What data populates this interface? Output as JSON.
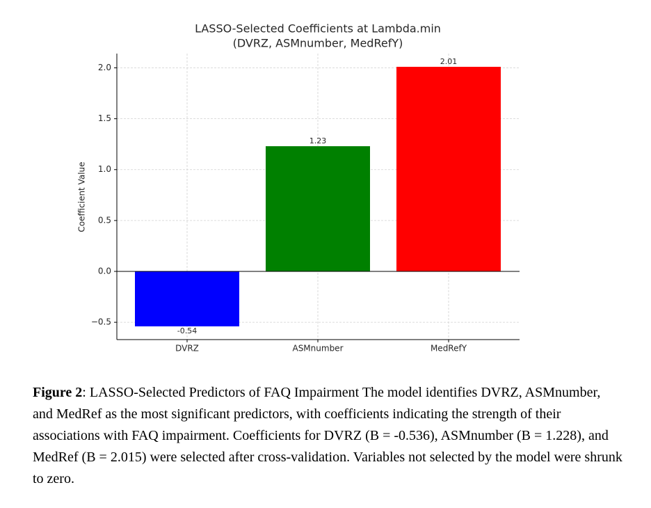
{
  "chart_data": {
    "type": "bar",
    "title": "LASSO-Selected Coefficients at Lambda.min",
    "subtitle": "(DVRZ, ASMnumber, MedRefY)",
    "y_label": "Coefficient Value",
    "categories": [
      "DVRZ",
      "ASMnumber",
      "MedRefY"
    ],
    "values": [
      -0.54,
      1.23,
      2.01
    ],
    "colors": [
      "#0000ff",
      "#008000",
      "#ff0000"
    ],
    "ylim": [
      -0.67,
      2.14
    ],
    "yticks": [
      {
        "value": -0.5,
        "label": "−0.5"
      },
      {
        "value": 0,
        "label": "0.0"
      },
      0.5,
      {
        "value": 1,
        "label": "1.0"
      },
      1.5,
      {
        "value": 2,
        "label": "2.0"
      }
    ],
    "grid": true
  },
  "caption": {
    "label": "Figure 2",
    "text": ": LASSO-Selected Predictors of FAQ Impairment The model identifies DVRZ, ASMnumber, and MedRef as the most significant predictors, with coefficients indicating the strength of their associations with FAQ impairment. Coefficients for DVRZ (B = -0.536), ASMnumber (B = 1.228), and MedRef (B = 2.015) were selected after cross-validation. Variables not selected by the model were shrunk to zero."
  }
}
